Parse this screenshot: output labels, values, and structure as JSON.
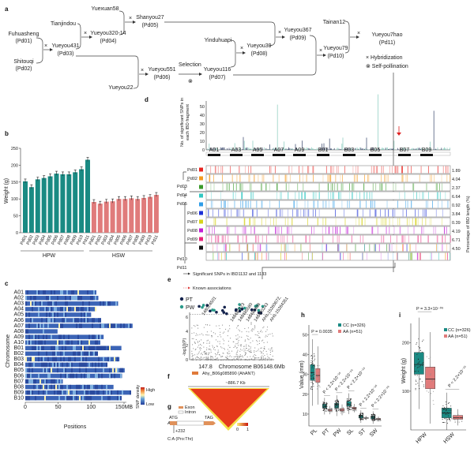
{
  "panel_labels": {
    "a": "a",
    "b": "b",
    "c": "c",
    "d": "d",
    "e": "e",
    "f": "f",
    "g": "g",
    "h": "h",
    "i": "i"
  },
  "pedigree": {
    "nodes": [
      {
        "name": "Fuhuasheng",
        "id": "(Pd01)"
      },
      {
        "name": "Shitouqi",
        "id": "(Pd02)"
      },
      {
        "name": "Tianjindou",
        "id": ""
      },
      {
        "name": "Yueyou431",
        "id": "(Pd03)"
      },
      {
        "name": "Yuexuan58",
        "id": ""
      },
      {
        "name": "Yueyou320-14",
        "id": "(Pd04)"
      },
      {
        "name": "Shanyou27",
        "id": "(Pd05)"
      },
      {
        "name": "Yueyou22",
        "id": ""
      },
      {
        "name": "Yueyou551",
        "id": "(Pd06)"
      },
      {
        "name": "Yueyou116",
        "id": "(Pd07)"
      },
      {
        "name": "Yinduhuapi",
        "id": ""
      },
      {
        "name": "Yueyou39",
        "id": "(Pd08)"
      },
      {
        "name": "Yueyou367",
        "id": "(Pd09)"
      },
      {
        "name": "Tainan12",
        "id": ""
      },
      {
        "name": "Yueyou79",
        "id": "(Pd10)"
      },
      {
        "name": "Yueyou7hao",
        "id": "(Pd11)"
      }
    ],
    "cross_symbol": "×",
    "self_symbol": "⊗",
    "selection_label": "Selection",
    "legend": {
      "hybridization": "× Hybridization",
      "self": "⊗ Self-pollination"
    }
  },
  "chart_data": [
    {
      "panel": "b",
      "type": "bar",
      "ylabel": "Weight (g)",
      "ylim": [
        0,
        250
      ],
      "yticks": [
        0,
        50,
        100,
        150,
        200,
        250
      ],
      "groups": [
        "HPW",
        "HSW"
      ],
      "categories": [
        "Pd01",
        "Pd02",
        "Pd03",
        "Pd04",
        "Pd05",
        "Pd06",
        "Pd07",
        "Pd08",
        "Pd09",
        "Pd10",
        "Pd11"
      ],
      "series": [
        {
          "name": "HPW",
          "color": "#1a8a83",
          "values": [
            152,
            135,
            158,
            162,
            167,
            175,
            173,
            173,
            179,
            188,
            216
          ]
        },
        {
          "name": "HSW",
          "color": "#e07b7b",
          "values": [
            91,
            86,
            92,
            93,
            100,
            100,
            102,
            100,
            103,
            106,
            112
          ]
        }
      ]
    },
    {
      "panel": "c",
      "type": "heatmap",
      "xlabel": "Positions",
      "ylabel": "Chromosome",
      "xticks": [
        "0",
        "50",
        "100",
        "150MB"
      ],
      "xlim": [
        0,
        150
      ],
      "chromosomes": [
        "A01",
        "A02",
        "A03",
        "A04",
        "A05",
        "A06",
        "A07",
        "A08",
        "A09",
        "A10",
        "B01",
        "B02",
        "B03",
        "B04",
        "B05",
        "B06",
        "B07",
        "B08",
        "B09",
        "B10"
      ],
      "lengths_mb": [
        108,
        111,
        141,
        106,
        100,
        115,
        163,
        49,
        119,
        114,
        146,
        109,
        143,
        124,
        151,
        147,
        57,
        134,
        159,
        145
      ],
      "legend": {
        "title": "SNP density",
        "high": "High",
        "low": "Low"
      }
    },
    {
      "panel": "d",
      "type": "bar",
      "ylabel": "No. of significant SNPs in each IBD fragment",
      "yticks": [
        0,
        10,
        20,
        30,
        40,
        50
      ],
      "chromosome_labels": [
        "A01",
        "A03",
        "A05",
        "A07",
        "A09",
        "B01",
        "B03",
        "B05",
        "B07",
        "B09"
      ],
      "ibd_rows": [
        {
          "label": "Pd01",
          "color": "#e8231f",
          "percent": "1.89"
        },
        {
          "label": "Pd02",
          "color": "#f39a1e",
          "percent": "4.04"
        },
        {
          "label": "",
          "color": "#3a9a2a",
          "percent": "2.37"
        },
        {
          "label": "",
          "color": "#33c7c2",
          "percent": "6.64"
        },
        {
          "label": "",
          "color": "#2f9de8",
          "percent": "0.92"
        },
        {
          "label": "Pd06",
          "color": "#1b2fd6",
          "percent": "3.84"
        },
        {
          "label": "Pd07",
          "color": "#d6d21a",
          "percent": "0.39"
        },
        {
          "label": "Pd08",
          "color": "#c21ad6",
          "percent": "4.19"
        },
        {
          "label": "Pd09",
          "color": "#e8217a",
          "percent": "6.71"
        },
        {
          "label": "",
          "color": "#111111",
          "percent": "4.50"
        }
      ],
      "tree_labels": [
        "Pd03",
        "Pd04",
        "Pd05",
        "Pd10",
        "Pd11"
      ],
      "right_label": "Percentage of IBD length (%)"
    },
    {
      "panel": "e",
      "type": "scatter",
      "ylabel": "-log10(P)",
      "xlabel": "Chromosome B06",
      "xticks": [
        "147.8",
        "148.6Mb"
      ],
      "yticks": [
        0,
        2,
        4,
        6
      ],
      "legend": [
        "PT",
        "PW"
      ],
      "legend_colors": [
        "#14234d",
        "#2a9a8a"
      ],
      "annotations": [
        "148024501",
        "148482123",
        "148485580",
        "148488488",
        "148490243",
        "AHs-15260672,",
        "AHs-15264351"
      ],
      "key": {
        "sig": "Significant SNPs in IBD1132 and 1133",
        "known": "Known associations"
      }
    },
    {
      "panel": "f",
      "type": "heatmap",
      "gene": "Ahy_B06g085890 (AhANT)",
      "span": "~886.7 Kb",
      "scale": [
        "0",
        "1"
      ]
    },
    {
      "panel": "g",
      "type": "diagram",
      "gene": "AhANT",
      "start": "ATG",
      "stop": "TAG",
      "position": "+232",
      "variant": "C:A (Pro:Thr)",
      "legend": [
        "Exon",
        "Intron"
      ]
    },
    {
      "panel": "h",
      "type": "box",
      "ylabel": "Value (mm)",
      "ylim": [
        4,
        55
      ],
      "yticks": [
        10,
        20,
        30,
        40,
        50
      ],
      "categories": [
        "PL",
        "PT",
        "PW",
        "SL",
        "ST",
        "SW"
      ],
      "series": [
        {
          "name": "CC (n=326)",
          "color": "#1a8a83",
          "median": [
            31,
            14,
            14.5,
            15,
            9,
            8.5
          ],
          "q1": [
            27,
            13,
            13,
            14,
            8,
            7.5
          ],
          "q3": [
            35,
            15,
            15.5,
            16.5,
            9.5,
            9
          ]
        },
        {
          "name": "AA (n=51)",
          "color": "#e07b7b",
          "median": [
            29.5,
            12,
            12,
            13,
            8,
            7.5
          ],
          "q1": [
            26,
            11.5,
            11.5,
            12.5,
            7.8,
            7.2
          ],
          "q3": [
            33,
            12.5,
            12.8,
            13.5,
            8.3,
            7.8
          ]
        }
      ],
      "pvalues": [
        "P = 0.0035",
        "P < 2.2×10⁻¹⁶",
        "P < 2.2×10⁻¹⁶",
        "P < 2.2×10⁻¹⁶",
        "P < 2.2×10⁻¹⁶",
        "P < 2.2×10⁻¹⁶"
      ]
    },
    {
      "panel": "i",
      "type": "box",
      "ylabel": "Weight (g)",
      "ylim": [
        20,
        240
      ],
      "yticks": [
        100,
        200
      ],
      "categories": [
        "HPW",
        "HSW"
      ],
      "series": [
        {
          "name": "CC (n=326)",
          "color": "#1a8a83",
          "median": [
            155,
            55
          ],
          "q1": [
            135,
            45
          ],
          "q3": [
            180,
            65
          ]
        },
        {
          "name": "AA (n=51)",
          "color": "#e07b7b",
          "median": [
            125,
            45
          ],
          "q1": [
            105,
            42
          ],
          "q3": [
            150,
            50
          ]
        }
      ],
      "pvalues": [
        "P = 3.3×10⁻⁰⁹",
        "P < 2.2×10⁻¹⁶"
      ]
    }
  ]
}
